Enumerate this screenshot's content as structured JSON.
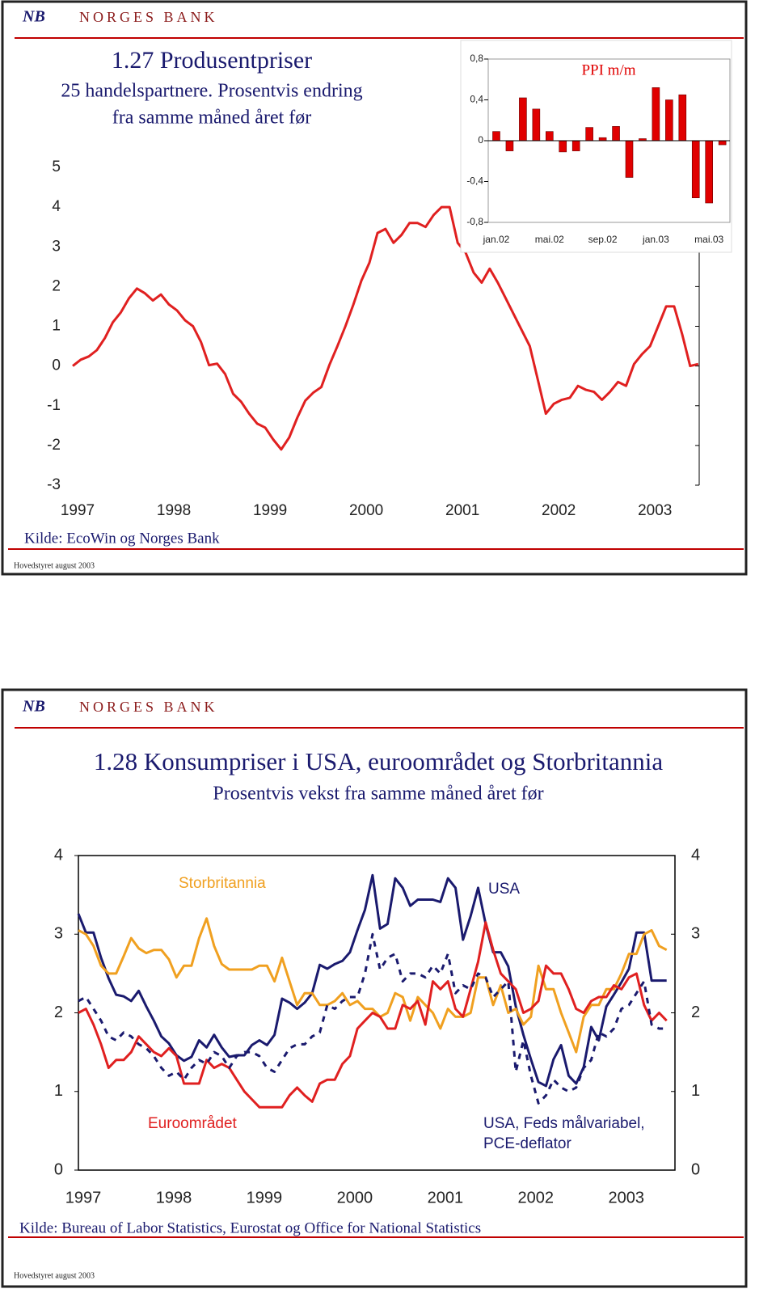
{
  "slides": [
    {
      "logo_mark": "NB",
      "logo": "NORGES BANK",
      "footer": "Hovedstyret august 2003"
    },
    {
      "logo_mark": "NB",
      "logo": "NORGES BANK",
      "footer": "Hovedstyret august 2003"
    }
  ],
  "chart_data": [
    {
      "type": "line",
      "title": "1.27 Produsentpriser",
      "subtitle": [
        "25 handelspartnere. Prosentvis endring",
        "fra samme måned året før"
      ],
      "source": "Kilde: EcoWin og Norges Bank",
      "categories": [
        "1997",
        null,
        null,
        null,
        null,
        null,
        null,
        null,
        null,
        null,
        null,
        null,
        "1998",
        null,
        null,
        null,
        null,
        null,
        null,
        null,
        null,
        null,
        null,
        null,
        "1999",
        null,
        null,
        null,
        null,
        null,
        null,
        null,
        null,
        null,
        null,
        null,
        "2000",
        null,
        null,
        null,
        null,
        null,
        null,
        null,
        null,
        null,
        null,
        null,
        "2001",
        null,
        null,
        null,
        null,
        null,
        null,
        null,
        null,
        null,
        null,
        null,
        "2002",
        null,
        null,
        null,
        null,
        null,
        null,
        null,
        null,
        null,
        null,
        null,
        "2003",
        null,
        null,
        null,
        null,
        null,
        null
      ],
      "values": [
        0,
        0.16,
        0.24,
        0.4,
        0.7,
        1.1,
        1.35,
        1.7,
        1.95,
        1.83,
        1.65,
        1.8,
        1.55,
        1.4,
        1.15,
        1.0,
        0.6,
        0.02,
        0.06,
        -0.2,
        -0.7,
        -0.9,
        -1.2,
        -1.45,
        -1.55,
        -1.85,
        -2.1,
        -1.8,
        -1.3,
        -0.87,
        -0.67,
        -0.53,
        0.02,
        0.5,
        1.0,
        1.55,
        2.15,
        2.6,
        3.35,
        3.45,
        3.1,
        3.3,
        3.6,
        3.6,
        3.5,
        3.8,
        4.0,
        4.0,
        3.1,
        2.85,
        2.35,
        2.1,
        2.45,
        2.1,
        1.7,
        1.3,
        0.9,
        0.5,
        -0.35,
        -1.2,
        -0.95,
        -0.85,
        -0.8,
        -0.5,
        -0.6,
        -0.65,
        -0.85,
        -0.65,
        -0.4,
        -0.5,
        0.05,
        0.3,
        0.5,
        1.0,
        1.5,
        1.5,
        0.8,
        0.0,
        0.05
      ],
      "color": "#e02020",
      "ylim": [
        -3,
        5
      ],
      "yticks": [
        -3,
        -2,
        -1,
        0,
        1,
        2,
        3,
        4,
        5
      ]
    },
    {
      "type": "bar",
      "title": "PPI m/m",
      "categories": [
        "jan.02",
        null,
        null,
        null,
        "mai.02",
        null,
        null,
        null,
        "sep.02",
        null,
        null,
        null,
        "jan.03",
        null,
        null,
        null,
        "mai.03",
        null
      ],
      "values": [
        0.09,
        -0.1,
        0.42,
        0.31,
        0.09,
        -0.11,
        -0.1,
        0.13,
        0.03,
        0.14,
        -0.36,
        0.02,
        0.52,
        0.4,
        0.45,
        -0.56,
        -0.61,
        -0.04
      ],
      "color": "#e00000",
      "ylim": [
        -0.8,
        0.8
      ],
      "yticks": [
        {
          "value": -0.8,
          "label": "-0,8"
        },
        {
          "value": -0.4,
          "label": "-0,4"
        },
        0,
        {
          "value": 0.4,
          "label": "0,4"
        },
        {
          "value": 0.8,
          "label": "0,8"
        }
      ]
    },
    {
      "type": "line",
      "title": "1.28 Konsumpriser i USA, euroområdet og Storbritannia",
      "subtitle": "Prosentvis vekst fra samme måned året før",
      "source": "Kilde: Bureau of Labor Statistics, Eurostat og Office for National Statistics",
      "categories": [
        "1997",
        null,
        null,
        null,
        null,
        null,
        null,
        null,
        null,
        null,
        null,
        null,
        "1998",
        null,
        null,
        null,
        null,
        null,
        null,
        null,
        null,
        null,
        null,
        null,
        "1999",
        null,
        null,
        null,
        null,
        null,
        null,
        null,
        null,
        null,
        null,
        null,
        "2000",
        null,
        null,
        null,
        null,
        null,
        null,
        null,
        null,
        null,
        null,
        null,
        "2001",
        null,
        null,
        null,
        null,
        null,
        null,
        null,
        null,
        null,
        null,
        null,
        "2002",
        null,
        null,
        null,
        null,
        null,
        null,
        null,
        null,
        null,
        null,
        null,
        "2003",
        null,
        null,
        null,
        null,
        null,
        null
      ],
      "series": [
        {
          "name": "USA",
          "color": "#1a1a6e",
          "style": "solid",
          "values": [
            3.26,
            3.02,
            3.02,
            2.7,
            2.44,
            2.23,
            2.21,
            2.15,
            2.28,
            2.08,
            1.9,
            1.7,
            1.61,
            1.46,
            1.39,
            1.44,
            1.65,
            1.56,
            1.72,
            1.56,
            1.44,
            1.46,
            1.46,
            1.59,
            1.65,
            1.59,
            1.72,
            2.18,
            2.13,
            2.05,
            2.13,
            2.25,
            2.61,
            2.56,
            2.62,
            2.66,
            2.77,
            3.05,
            3.31,
            3.75,
            3.07,
            3.13,
            3.71,
            3.59,
            3.36,
            3.44,
            3.44,
            3.44,
            3.41,
            3.71,
            3.59,
            2.93,
            3.23,
            3.59,
            3.13,
            2.77,
            2.77,
            2.59,
            2.08,
            1.72,
            1.41,
            1.12,
            1.07,
            1.41,
            1.59,
            1.2,
            1.1,
            1.31,
            1.82,
            1.65,
            2.08,
            2.23,
            2.39,
            2.56,
            3.02,
            3.02,
            2.41,
            2.41,
            2.41
          ]
        },
        {
          "name": "Storbritannia",
          "color": "#f0a020",
          "style": "solid",
          "values": [
            3.05,
            3.0,
            2.85,
            2.6,
            2.5,
            2.5,
            2.72,
            2.95,
            2.82,
            2.76,
            2.8,
            2.8,
            2.68,
            2.45,
            2.6,
            2.6,
            2.95,
            3.2,
            2.85,
            2.62,
            2.55,
            2.55,
            2.55,
            2.55,
            2.6,
            2.6,
            2.4,
            2.7,
            2.4,
            2.1,
            2.25,
            2.25,
            2.1,
            2.1,
            2.15,
            2.25,
            2.1,
            2.15,
            2.05,
            2.05,
            1.95,
            2.0,
            2.25,
            2.2,
            1.9,
            2.2,
            2.1,
            2.0,
            1.8,
            2.05,
            1.95,
            1.95,
            2.0,
            2.45,
            2.45,
            2.1,
            2.35,
            2.0,
            2.05,
            1.85,
            1.95,
            2.6,
            2.3,
            2.3,
            2.0,
            1.75,
            1.5,
            1.95,
            2.1,
            2.1,
            2.3,
            2.3,
            2.5,
            2.75,
            2.75,
            3.0,
            3.05,
            2.85,
            2.8
          ]
        },
        {
          "name": "Euroområdet",
          "color": "#e02020",
          "style": "solid",
          "values": [
            2.0,
            2.05,
            1.85,
            1.6,
            1.3,
            1.4,
            1.4,
            1.5,
            1.7,
            1.6,
            1.5,
            1.45,
            1.55,
            1.45,
            1.1,
            1.1,
            1.1,
            1.4,
            1.3,
            1.35,
            1.3,
            1.15,
            1.0,
            0.9,
            0.8,
            0.8,
            0.8,
            0.8,
            0.95,
            1.05,
            0.95,
            0.87,
            1.1,
            1.15,
            1.15,
            1.35,
            1.45,
            1.8,
            1.9,
            2.0,
            1.95,
            1.8,
            1.8,
            2.1,
            2.05,
            2.15,
            1.85,
            2.4,
            2.3,
            2.4,
            2.05,
            1.95,
            2.3,
            2.65,
            3.15,
            2.8,
            2.5,
            2.4,
            2.3,
            2.0,
            2.05,
            2.15,
            2.6,
            2.5,
            2.5,
            2.3,
            2.05,
            2.0,
            2.15,
            2.2,
            2.2,
            2.35,
            2.3,
            2.45,
            2.5,
            2.1,
            1.9,
            2.0,
            1.9
          ]
        },
        {
          "name": "USA, Feds målvariabel, PCE-deflator",
          "color": "#1a1a6e",
          "style": "dashed",
          "values": [
            2.15,
            2.2,
            2.05,
            1.9,
            1.7,
            1.65,
            1.75,
            1.7,
            1.6,
            1.55,
            1.45,
            1.3,
            1.2,
            1.25,
            1.15,
            1.3,
            1.4,
            1.35,
            1.5,
            1.45,
            1.3,
            1.45,
            1.5,
            1.5,
            1.45,
            1.3,
            1.25,
            1.4,
            1.55,
            1.6,
            1.6,
            1.7,
            1.75,
            2.1,
            2.05,
            2.15,
            2.2,
            2.2,
            2.5,
            3.0,
            2.55,
            2.7,
            2.75,
            2.4,
            2.5,
            2.5,
            2.45,
            2.6,
            2.5,
            2.75,
            2.25,
            2.35,
            2.3,
            2.5,
            2.45,
            2.2,
            2.3,
            2.4,
            1.25,
            1.65,
            1.2,
            0.85,
            0.95,
            1.15,
            1.05,
            1.0,
            1.05,
            1.3,
            1.4,
            1.75,
            1.7,
            1.8,
            2.05,
            2.1,
            2.25,
            2.4,
            1.85,
            1.8,
            1.8
          ]
        }
      ],
      "ylim": [
        0,
        4
      ],
      "yticks": [
        0,
        1,
        2,
        3,
        4
      ],
      "y2lim": [
        0,
        4
      ],
      "y2ticks": [
        0,
        1,
        2,
        3,
        4
      ]
    }
  ]
}
